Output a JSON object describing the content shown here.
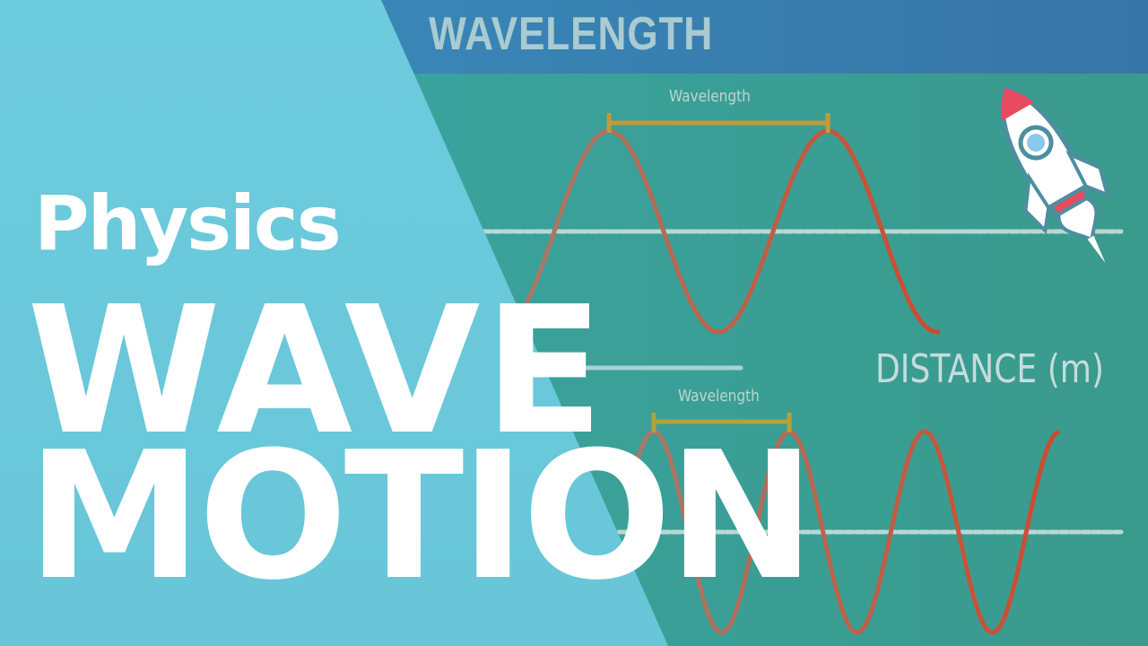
{
  "header": {
    "title": "WAVELENGTH"
  },
  "diagram": {
    "top_label": "Wavelength",
    "bottom_label": "Wavelength",
    "axis_label": "DISTANCE (m)"
  },
  "title": {
    "subject": "Physics",
    "line1": "WAVE",
    "line2": "MOTION"
  },
  "colors": {
    "header": "#3a85b5",
    "background": "#3aa39a",
    "panel": "#6ccbdc",
    "wave": "#c0503a",
    "bar": "#c49a34"
  },
  "icons": [
    "rocket-icon"
  ]
}
